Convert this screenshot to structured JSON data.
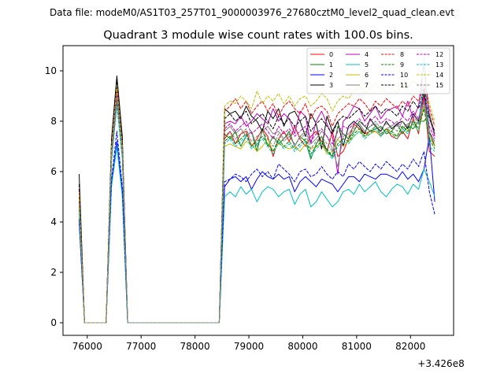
{
  "figure": {
    "suptitle": "Data file: modeM0/AS1T03_257T01_9000003976_27680cztM0_level2_quad_clean.evt",
    "offset_label": "+3.426e8"
  },
  "chart_data": {
    "type": "line",
    "title": "Quadrant 3 module wise count rates with 100.0s bins.",
    "xlabel": "",
    "ylabel": "",
    "xlim": [
      75550,
      82800
    ],
    "ylim": [
      -0.5,
      11.0
    ],
    "x_offset": 342600000,
    "xticks": [
      76000,
      77000,
      78000,
      79000,
      80000,
      81000,
      82000
    ],
    "yticks": [
      0,
      2,
      4,
      6,
      8,
      10
    ],
    "grid": false,
    "legend": {
      "position": "top-right",
      "columns": 4
    },
    "x": [
      75850,
      75950,
      76050,
      76150,
      76250,
      76350,
      76450,
      76550,
      76650,
      76750,
      76850,
      76950,
      77050,
      77150,
      77250,
      77350,
      77450,
      77550,
      77650,
      77750,
      77850,
      77950,
      78050,
      78150,
      78250,
      78350,
      78450,
      78550,
      78650,
      78750,
      78850,
      78950,
      79050,
      79150,
      79250,
      79350,
      79450,
      79550,
      79650,
      79750,
      79850,
      79950,
      80050,
      80150,
      80250,
      80350,
      80450,
      80550,
      80650,
      80750,
      80850,
      80950,
      81050,
      81150,
      81250,
      81350,
      81450,
      81550,
      81650,
      81750,
      81850,
      81950,
      82050,
      82150,
      82250,
      82350,
      82450
    ],
    "series": [
      {
        "name": "0",
        "color": "#ff0000",
        "dash": false,
        "values": [
          5.0,
          0,
          0,
          0,
          0,
          0,
          6.7,
          9.0,
          7.0,
          0,
          0,
          0,
          0,
          0,
          0,
          0,
          0,
          0,
          0,
          0,
          0,
          0,
          0,
          0,
          0,
          0,
          0,
          7.3,
          7.6,
          7.1,
          7.5,
          7.6,
          7.0,
          7.3,
          7.7,
          7.4,
          6.6,
          7.3,
          7.6,
          7.2,
          7.8,
          7.3,
          7.0,
          7.4,
          7.6,
          7.2,
          6.8,
          7.6,
          6.6,
          6.8,
          7.3,
          7.9,
          7.7,
          7.5,
          7.6,
          7.6,
          7.4,
          7.7,
          7.4,
          7.3,
          7.6,
          7.3,
          8.1,
          7.5,
          9.0,
          6.8,
          6.6
        ]
      },
      {
        "name": "1",
        "color": "#008000",
        "dash": false,
        "values": [
          4.8,
          0,
          0,
          0,
          0,
          0,
          6.9,
          9.2,
          6.8,
          0,
          0,
          0,
          0,
          0,
          0,
          0,
          0,
          0,
          0,
          0,
          0,
          0,
          0,
          0,
          0,
          0,
          0,
          7.5,
          7.3,
          7.6,
          7.0,
          7.4,
          7.6,
          6.8,
          7.7,
          7.0,
          7.4,
          7.1,
          7.3,
          7.6,
          7.0,
          7.4,
          7.2,
          6.5,
          7.1,
          7.4,
          6.8,
          6.6,
          7.8,
          7.5,
          7.3,
          7.6,
          8.0,
          7.8,
          7.6,
          7.7,
          7.8,
          7.5,
          7.6,
          7.9,
          7.5,
          7.8,
          7.7,
          8.0,
          8.0,
          8.3,
          7.5
        ]
      },
      {
        "name": "2",
        "color": "#0000ff",
        "dash": false,
        "values": [
          4.0,
          0,
          0,
          0,
          0,
          0,
          5.5,
          7.2,
          5.2,
          0,
          0,
          0,
          0,
          0,
          0,
          0,
          0,
          0,
          0,
          0,
          0,
          0,
          0,
          0,
          0,
          0,
          0,
          5.4,
          5.7,
          5.8,
          5.6,
          5.8,
          5.3,
          5.7,
          6.0,
          5.8,
          5.7,
          5.9,
          5.7,
          5.8,
          5.2,
          5.6,
          5.8,
          5.6,
          5.4,
          5.7,
          5.6,
          5.5,
          5.2,
          5.5,
          5.8,
          5.8,
          5.6,
          5.9,
          5.8,
          5.7,
          5.9,
          5.9,
          5.8,
          5.7,
          6.0,
          5.7,
          5.9,
          5.6,
          6.1,
          7.4,
          4.8
        ]
      },
      {
        "name": "3",
        "color": "#000000",
        "dash": false,
        "values": [
          5.9,
          0,
          0,
          0,
          0,
          0,
          7.3,
          9.8,
          7.4,
          0,
          0,
          0,
          0,
          0,
          0,
          0,
          0,
          0,
          0,
          0,
          0,
          0,
          0,
          0,
          0,
          0,
          0,
          8.5,
          8.3,
          8.4,
          8.1,
          8.6,
          8.2,
          8.0,
          7.6,
          8.4,
          8.1,
          8.5,
          7.8,
          8.3,
          8.4,
          8.0,
          7.4,
          8.3,
          7.9,
          6.9,
          8.2,
          7.6,
          8.0,
          7.0,
          7.8,
          8.0,
          7.8,
          7.5,
          8.1,
          7.8,
          7.6,
          8.0,
          7.7,
          7.9,
          8.0,
          7.7,
          8.3,
          8.0,
          9.2,
          7.6,
          7.0
        ]
      },
      {
        "name": "4",
        "color": "#bf00bf",
        "dash": false,
        "values": [
          4.7,
          0,
          0,
          0,
          0,
          0,
          6.8,
          9.4,
          6.9,
          0,
          0,
          0,
          0,
          0,
          0,
          0,
          0,
          0,
          0,
          0,
          0,
          0,
          0,
          0,
          0,
          0,
          0,
          7.9,
          8.0,
          7.9,
          8.2,
          7.8,
          8.0,
          8.3,
          8.1,
          7.9,
          8.5,
          8.0,
          8.3,
          8.1,
          7.5,
          8.4,
          8.2,
          7.1,
          8.0,
          8.4,
          7.9,
          7.4,
          5.9,
          8.0,
          8.2,
          8.6,
          8.5,
          8.0,
          8.3,
          8.6,
          8.1,
          8.4,
          8.5,
          8.6,
          8.2,
          8.8,
          8.1,
          8.6,
          10.3,
          8.2,
          7.4
        ]
      },
      {
        "name": "5",
        "color": "#00bfbf",
        "dash": false,
        "values": [
          4.2,
          0,
          0,
          0,
          0,
          0,
          5.4,
          7.0,
          5.0,
          0,
          0,
          0,
          0,
          0,
          0,
          0,
          0,
          0,
          0,
          0,
          0,
          0,
          0,
          0,
          0,
          0,
          0,
          5.0,
          5.2,
          5.0,
          5.4,
          5.1,
          5.3,
          4.8,
          5.2,
          5.4,
          5.3,
          5.0,
          5.2,
          5.3,
          4.7,
          5.1,
          5.3,
          4.6,
          4.8,
          5.2,
          4.9,
          4.6,
          4.8,
          5.2,
          5.3,
          5.1,
          5.5,
          5.2,
          5.4,
          5.6,
          5.2,
          5.0,
          5.3,
          5.5,
          5.4,
          5.1,
          5.5,
          5.3,
          6.1,
          5.6,
          5.0
        ]
      },
      {
        "name": "6",
        "color": "#bfbf00",
        "dash": false,
        "values": [
          4.6,
          0,
          0,
          0,
          0,
          0,
          6.6,
          9.1,
          6.7,
          0,
          0,
          0,
          0,
          0,
          0,
          0,
          0,
          0,
          0,
          0,
          0,
          0,
          0,
          0,
          0,
          0,
          0,
          7.0,
          7.1,
          7.0,
          6.9,
          7.2,
          7.1,
          6.8,
          7.0,
          7.3,
          6.8,
          7.1,
          7.0,
          6.9,
          7.0,
          6.8,
          7.1,
          6.9,
          7.0,
          7.1,
          6.7,
          6.8,
          7.3,
          7.0,
          7.2,
          7.4,
          7.6,
          7.4,
          7.5,
          7.6,
          7.4,
          7.7,
          7.5,
          7.4,
          7.8,
          7.6,
          7.9,
          7.6,
          8.6,
          7.4,
          7.0
        ]
      },
      {
        "name": "7",
        "color": "#808080",
        "dash": false,
        "values": [
          4.9,
          0,
          0,
          0,
          0,
          0,
          6.8,
          9.0,
          6.8,
          0,
          0,
          0,
          0,
          0,
          0,
          0,
          0,
          0,
          0,
          0,
          0,
          0,
          0,
          0,
          0,
          0,
          0,
          7.6,
          7.8,
          7.5,
          7.7,
          7.4,
          7.6,
          7.0,
          7.6,
          7.8,
          7.5,
          7.6,
          7.3,
          7.5,
          7.0,
          7.4,
          7.6,
          7.1,
          7.3,
          7.6,
          7.4,
          6.9,
          6.2,
          7.4,
          7.5,
          7.8,
          7.9,
          7.6,
          7.8,
          7.9,
          7.4,
          7.7,
          7.8,
          8.0,
          7.7,
          7.9,
          8.0,
          7.9,
          8.8,
          7.6,
          7.2
        ]
      },
      {
        "name": "8",
        "color": "#ff0000",
        "dash": true,
        "values": [
          5.3,
          0,
          0,
          0,
          0,
          0,
          6.9,
          9.3,
          7.1,
          0,
          0,
          0,
          0,
          0,
          0,
          0,
          0,
          0,
          0,
          0,
          0,
          0,
          0,
          0,
          0,
          0,
          0,
          8.4,
          8.6,
          8.9,
          8.5,
          8.8,
          8.3,
          8.6,
          8.8,
          8.4,
          8.7,
          8.2,
          8.6,
          8.8,
          8.5,
          8.3,
          8.7,
          8.1,
          8.5,
          8.6,
          8.4,
          7.8,
          8.3,
          8.5,
          8.7,
          8.6,
          8.9,
          8.7,
          8.4,
          8.8,
          8.6,
          8.9,
          8.7,
          8.5,
          8.8,
          8.6,
          9.0,
          8.8,
          9.4,
          8.5,
          7.8
        ]
      },
      {
        "name": "9",
        "color": "#008000",
        "dash": true,
        "values": [
          4.5,
          0,
          0,
          0,
          0,
          0,
          6.5,
          8.8,
          6.6,
          0,
          0,
          0,
          0,
          0,
          0,
          0,
          0,
          0,
          0,
          0,
          0,
          0,
          0,
          0,
          0,
          0,
          0,
          7.2,
          7.4,
          7.1,
          7.3,
          7.5,
          7.0,
          7.2,
          7.4,
          7.1,
          6.8,
          7.3,
          7.0,
          7.2,
          6.9,
          7.1,
          7.3,
          6.7,
          7.0,
          7.2,
          6.9,
          6.6,
          7.1,
          7.3,
          7.2,
          7.5,
          7.7,
          7.4,
          7.6,
          7.8,
          7.5,
          7.7,
          7.6,
          7.4,
          7.8,
          7.6,
          8.0,
          7.7,
          8.5,
          7.3,
          6.9
        ]
      },
      {
        "name": "10",
        "color": "#0000ff",
        "dash": true,
        "values": [
          4.1,
          0,
          0,
          0,
          0,
          0,
          5.7,
          7.6,
          5.4,
          0,
          0,
          0,
          0,
          0,
          0,
          0,
          0,
          0,
          0,
          0,
          0,
          0,
          0,
          0,
          0,
          0,
          0,
          5.6,
          5.7,
          5.9,
          5.8,
          5.6,
          5.9,
          6.1,
          5.8,
          6.0,
          5.7,
          6.3,
          6.1,
          5.9,
          5.6,
          6.0,
          6.1,
          5.8,
          5.9,
          6.2,
          5.9,
          5.7,
          6.0,
          5.8,
          6.3,
          6.1,
          6.4,
          6.2,
          6.0,
          6.3,
          6.1,
          6.4,
          6.2,
          6.0,
          6.3,
          6.1,
          6.5,
          6.2,
          6.8,
          5.2,
          4.3
        ]
      },
      {
        "name": "11",
        "color": "#000000",
        "dash": true,
        "values": [
          5.5,
          0,
          0,
          0,
          0,
          0,
          7.1,
          9.6,
          7.2,
          0,
          0,
          0,
          0,
          0,
          0,
          0,
          0,
          0,
          0,
          0,
          0,
          0,
          0,
          0,
          0,
          0,
          0,
          8.1,
          8.3,
          8.0,
          8.2,
          8.4,
          7.9,
          8.1,
          8.3,
          8.0,
          7.7,
          8.2,
          7.9,
          8.1,
          7.8,
          8.0,
          8.2,
          7.6,
          7.9,
          8.1,
          7.8,
          7.5,
          8.0,
          8.2,
          8.1,
          8.3,
          8.5,
          8.2,
          8.4,
          8.6,
          8.3,
          8.5,
          8.4,
          8.2,
          8.6,
          8.4,
          8.8,
          8.5,
          9.3,
          8.1,
          7.6
        ]
      },
      {
        "name": "12",
        "color": "#bf00bf",
        "dash": true,
        "values": [
          4.8,
          0,
          0,
          0,
          0,
          0,
          6.7,
          9.1,
          6.9,
          0,
          0,
          0,
          0,
          0,
          0,
          0,
          0,
          0,
          0,
          0,
          0,
          0,
          0,
          0,
          0,
          0,
          0,
          7.7,
          7.9,
          7.6,
          7.8,
          8.0,
          7.5,
          7.7,
          7.9,
          7.6,
          7.3,
          7.8,
          7.5,
          7.7,
          7.4,
          7.6,
          7.8,
          7.2,
          7.5,
          7.7,
          7.4,
          7.1,
          7.6,
          7.8,
          7.7,
          7.9,
          8.1,
          7.8,
          8.0,
          8.2,
          7.9,
          8.1,
          8.0,
          7.8,
          8.2,
          8.0,
          8.4,
          8.1,
          9.0,
          7.8,
          7.3
        ]
      },
      {
        "name": "13",
        "color": "#00bfbf",
        "dash": true,
        "values": [
          4.4,
          0,
          0,
          0,
          0,
          0,
          6.4,
          8.6,
          6.5,
          0,
          0,
          0,
          0,
          0,
          0,
          0,
          0,
          0,
          0,
          0,
          0,
          0,
          0,
          0,
          0,
          0,
          0,
          7.1,
          7.3,
          7.0,
          7.2,
          7.4,
          6.9,
          7.1,
          7.3,
          7.0,
          6.7,
          7.2,
          6.9,
          7.1,
          6.8,
          7.0,
          7.2,
          6.6,
          6.9,
          7.1,
          6.8,
          6.5,
          7.0,
          7.2,
          7.1,
          7.4,
          7.6,
          7.3,
          7.5,
          7.7,
          7.4,
          7.6,
          7.5,
          7.3,
          7.7,
          7.5,
          7.9,
          7.6,
          10.5,
          7.0,
          6.8
        ]
      },
      {
        "name": "14",
        "color": "#bfbf00",
        "dash": true,
        "values": [
          5.1,
          0,
          0,
          0,
          0,
          0,
          7.0,
          9.4,
          7.0,
          0,
          0,
          0,
          0,
          0,
          0,
          0,
          0,
          0,
          0,
          0,
          0,
          0,
          0,
          0,
          0,
          0,
          0,
          8.6,
          8.8,
          8.7,
          9.0,
          8.8,
          8.5,
          9.2,
          8.7,
          9.0,
          8.8,
          9.1,
          8.7,
          9.0,
          8.6,
          8.9,
          9.0,
          8.6,
          8.8,
          9.1,
          8.9,
          8.4,
          8.8,
          9.0,
          8.9,
          9.2,
          9.4,
          9.1,
          9.3,
          9.5,
          9.2,
          9.4,
          9.3,
          9.1,
          9.5,
          9.3,
          9.6,
          9.4,
          9.9,
          8.7,
          8.0
        ]
      },
      {
        "name": "15",
        "color": "#808080",
        "dash": true,
        "values": [
          4.7,
          0,
          0,
          0,
          0,
          0,
          6.6,
          8.9,
          6.8,
          0,
          0,
          0,
          0,
          0,
          0,
          0,
          0,
          0,
          0,
          0,
          0,
          0,
          0,
          0,
          0,
          0,
          0,
          7.4,
          7.6,
          7.3,
          7.5,
          7.7,
          7.2,
          7.4,
          7.6,
          7.3,
          7.0,
          7.5,
          7.2,
          7.4,
          7.1,
          7.3,
          7.5,
          6.9,
          7.2,
          7.4,
          7.1,
          6.8,
          7.3,
          7.5,
          7.4,
          7.7,
          7.9,
          7.6,
          7.8,
          8.0,
          7.7,
          7.9,
          7.8,
          7.6,
          8.0,
          7.8,
          8.2,
          7.9,
          8.7,
          7.5,
          7.1
        ]
      }
    ]
  }
}
